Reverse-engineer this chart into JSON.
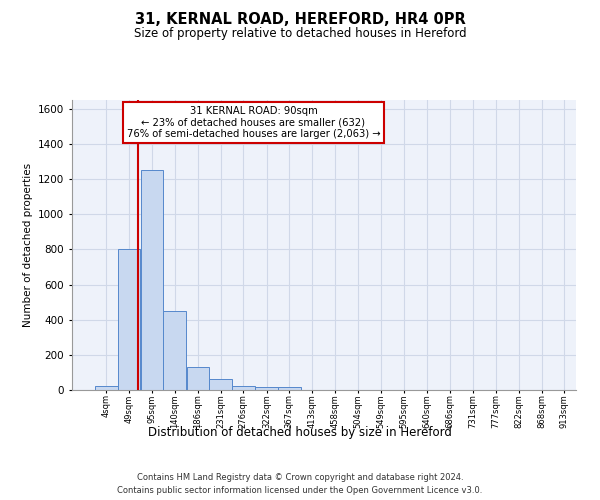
{
  "title1": "31, KERNAL ROAD, HEREFORD, HR4 0PR",
  "title2": "Size of property relative to detached houses in Hereford",
  "xlabel": "Distribution of detached houses by size in Hereford",
  "ylabel": "Number of detached properties",
  "bins": [
    4,
    49,
    95,
    140,
    186,
    231,
    276,
    322,
    367,
    413,
    458,
    504,
    549,
    595,
    640,
    686,
    731,
    777,
    822,
    868,
    913
  ],
  "bar_values": [
    25,
    800,
    1250,
    450,
    130,
    65,
    25,
    15,
    15,
    0,
    0,
    0,
    0,
    0,
    0,
    0,
    0,
    0,
    0,
    0
  ],
  "bar_color": "#c8d8f0",
  "bar_edgecolor": "#5588cc",
  "grid_color": "#d0d8e8",
  "bg_color": "#eef2fa",
  "red_line_x": 90,
  "annotation_title": "31 KERNAL ROAD: 90sqm",
  "annotation_line1": "← 23% of detached houses are smaller (632)",
  "annotation_line2": "76% of semi-detached houses are larger (2,063) →",
  "annotation_box_color": "#ffffff",
  "annotation_border_color": "#cc0000",
  "red_line_color": "#cc0000",
  "ylim": [
    0,
    1650
  ],
  "yticks": [
    0,
    200,
    400,
    600,
    800,
    1000,
    1200,
    1400,
    1600
  ],
  "footer1": "Contains HM Land Registry data © Crown copyright and database right 2024.",
  "footer2": "Contains public sector information licensed under the Open Government Licence v3.0."
}
